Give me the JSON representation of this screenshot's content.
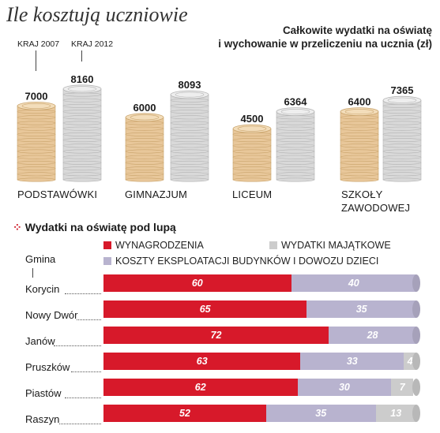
{
  "title": "Ile kosztują uczniowie",
  "subtitle_line1": "Całkowite wydatki na oświatę",
  "subtitle_line2": "i wychowanie w przeliczeniu na ucznia (zł)",
  "colors": {
    "coin_gold": "#e8c79a",
    "coin_silver": "#d9d9d9",
    "wynagrodzenia": "#d7192a",
    "koszty": "#b8b3cf",
    "majatkowe": "#cccccc",
    "accent": "#d0202e"
  },
  "chart_data": [
    {
      "type": "bar",
      "title": "Całkowite wydatki na oświatę i wychowanie w przeliczeniu na ucznia (zł)",
      "categories": [
        "PODSTAWÓWKI",
        "GIMNAZJUM",
        "LICEUM",
        "SZKOŁY ZAWODOWEJ"
      ],
      "series": [
        {
          "name": "KRAJ 2007",
          "values": [
            7000,
            6000,
            4500,
            6400
          ]
        },
        {
          "name": "KRAJ 2012",
          "values": [
            8160,
            8093,
            6364,
            7365
          ]
        }
      ],
      "value_labels_2007": [
        "7000",
        "6000",
        "4500",
        "6400"
      ],
      "value_labels_2012": [
        "8160",
        "8093",
        "6364",
        "7365"
      ],
      "category_line1": [
        "PODSTAWÓWKI",
        "GIMNAZJUM",
        "LICEUM",
        "SZKOŁY"
      ],
      "category_line2": [
        "",
        "",
        "",
        "ZAWODOWEJ"
      ],
      "legend_labels": [
        "KRAJ 2007",
        "KRAJ 2012"
      ],
      "ylim": [
        0,
        9000
      ]
    },
    {
      "type": "bar",
      "stacked": true,
      "orientation": "horizontal",
      "title": "Wydatki na oświatę pod lupą",
      "axis_label": "Gmina",
      "categories": [
        "Korycin",
        "Nowy Dwór",
        "Janów",
        "Pruszków",
        "Piastów",
        "Raszyn"
      ],
      "series": [
        {
          "name": "WYNAGRODZENIA",
          "values": [
            60,
            65,
            72,
            63,
            62,
            52
          ]
        },
        {
          "name": "KOSZTY EKSPLOATACJI BUDYNKÓW I DOWOZU DZIECI",
          "values": [
            40,
            35,
            28,
            33,
            30,
            35
          ]
        },
        {
          "name": "WYDATKI MAJĄTKOWE",
          "values": [
            0,
            0,
            0,
            4,
            7,
            13
          ]
        }
      ],
      "xlim": [
        0,
        100
      ]
    }
  ]
}
